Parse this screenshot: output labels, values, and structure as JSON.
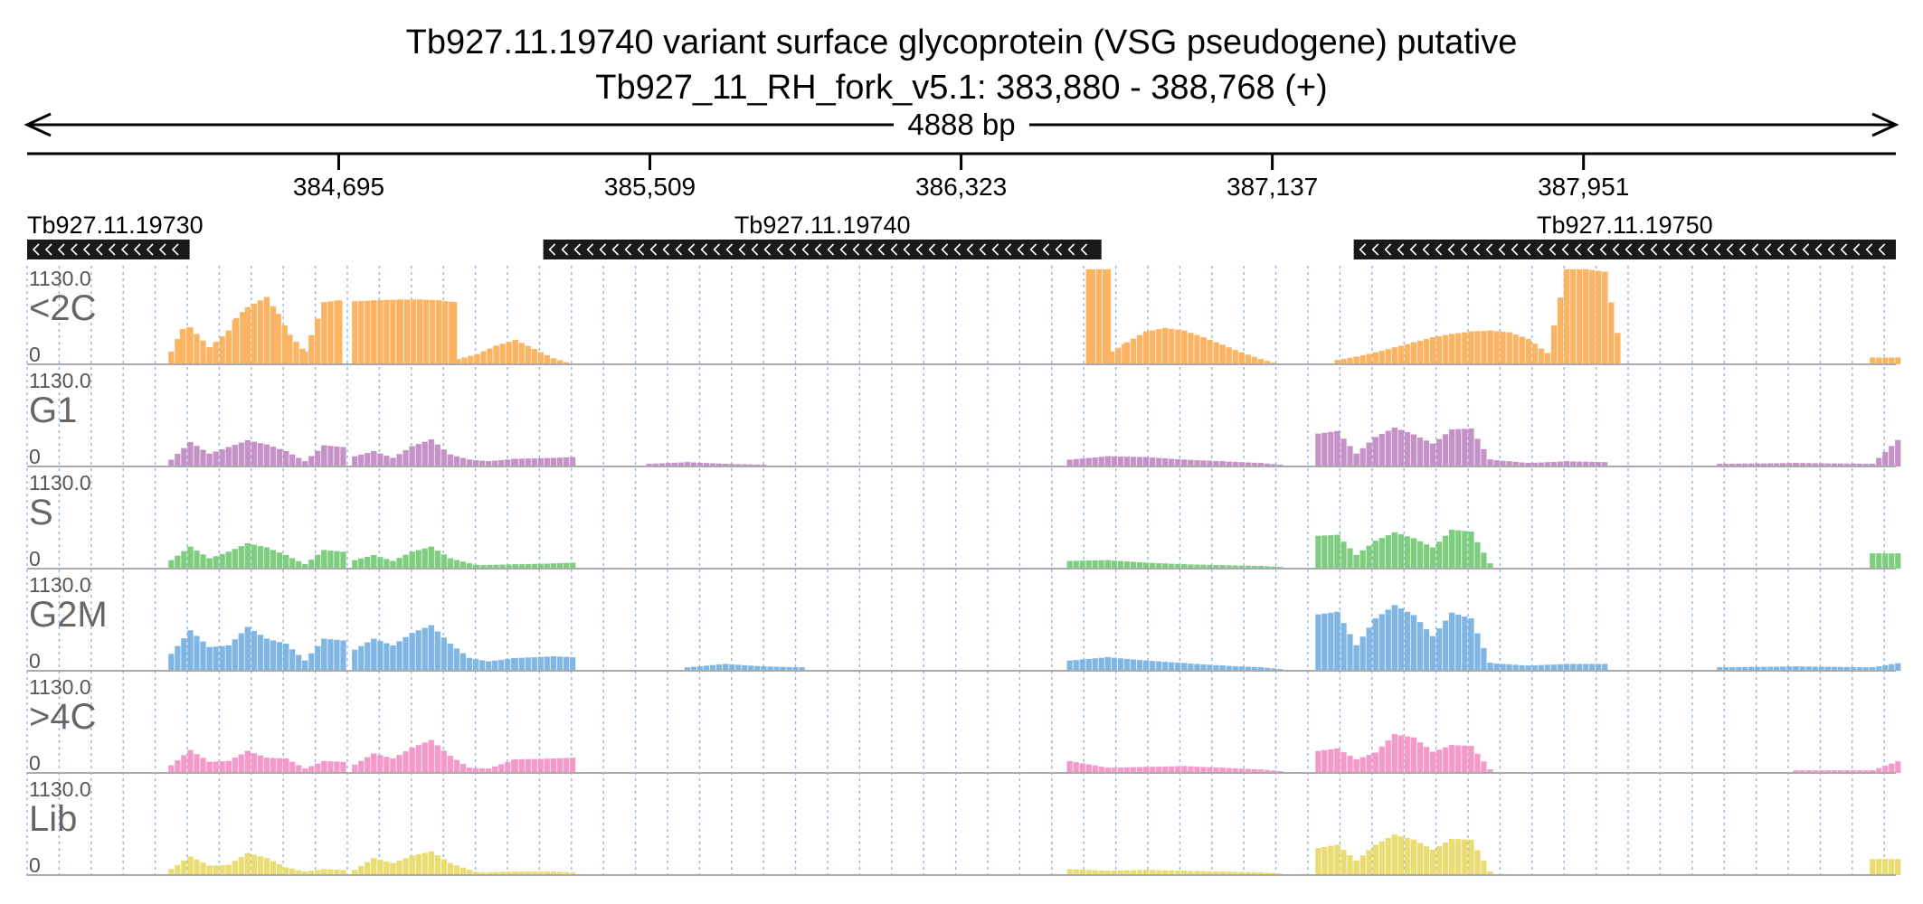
{
  "header": {
    "title": "Tb927.11.19740  variant surface glycoprotein (VSG  pseudogene)  putative",
    "locus": "Tb927_11_RH_fork_v5.1: 383,880 - 388,768 (+)",
    "span_label": "4888 bp"
  },
  "colors": {
    "<2C": "#fdb462",
    "G1": "#c492c6",
    "S": "#7fce7f",
    "G2M": "#80b6e4",
    ">4C": "#f59ac8",
    "Lib": "#e8dc72",
    "gene_box": "#1a1a1a",
    "grid": "#8fb6e0"
  },
  "chart_data": {
    "type": "area",
    "x_range": [
      383880,
      388768
    ],
    "x_ticks": [
      "384,695",
      "385,509",
      "386,323",
      "387,137",
      "387,951"
    ],
    "x_tick_values": [
      384695,
      385509,
      386323,
      387137,
      387951
    ],
    "genes": [
      {
        "name": "Tb927.11.19730",
        "start": 383880,
        "end": 384305,
        "strand": "-"
      },
      {
        "name": "Tb927.11.19740",
        "start": 385230,
        "end": 386690,
        "strand": "-"
      },
      {
        "name": "Tb927.11.19750",
        "start": 387350,
        "end": 388768,
        "strand": "-"
      }
    ],
    "track_ymax": "1130.0",
    "track_ymin": "0",
    "ylim": [
      0,
      1130
    ],
    "tracks": [
      {
        "name": "<2C",
        "segments": [
          {
            "x": [
              384250,
              384280,
              384300,
              384350,
              384400,
              384420,
              384450,
              384500,
              384530,
              384560,
              384600,
              384650,
              384690,
              384700
            ],
            "y": [
              150,
              420,
              440,
              200,
              400,
              550,
              680,
              800,
              600,
              350,
              150,
              740,
              760,
              0
            ]
          },
          {
            "x": [
              384730,
              384780,
              384850,
              384900,
              384950,
              384990,
              385000
            ],
            "y": [
              750,
              760,
              770,
              770,
              760,
              740,
              0
            ]
          },
          {
            "x": [
              385000,
              385050,
              385100,
              385150,
              385200,
              385250,
              385300
            ],
            "y": [
              60,
              120,
              220,
              290,
              180,
              70,
              0
            ]
          },
          {
            "x": [
              386650,
              386660,
              386700,
              386710,
              386750,
              386800,
              386850,
              386900,
              386950,
              387000,
              387050,
              387100,
              387150
            ],
            "y": [
              1130,
              1130,
              1130,
              150,
              260,
              390,
              430,
              400,
              320,
              230,
              140,
              60,
              0
            ]
          },
          {
            "x": [
              387300,
              387350,
              387400,
              387450,
              387500,
              387550,
              387600,
              387650,
              387700,
              387750,
              387800,
              387850,
              387900,
              387950,
              388000,
              388050
            ],
            "y": [
              50,
              90,
              140,
              200,
              260,
              320,
              360,
              390,
              400,
              380,
              300,
              130,
              1130,
              1130,
              1100,
              0
            ]
          },
          {
            "x": [
              388700,
              388768
            ],
            "y": [
              80,
              80
            ]
          }
        ]
      },
      {
        "name": "G1",
        "segments": [
          {
            "x": [
              384250,
              384300,
              384350,
              384400,
              384450,
              384500,
              384550,
              384600,
              384650,
              384700
            ],
            "y": [
              80,
              290,
              150,
              230,
              310,
              260,
              180,
              60,
              250,
              230
            ]
          },
          {
            "x": [
              384730,
              384780,
              384830,
              384880,
              384930,
              384980,
              385030,
              385080,
              385150,
              385250,
              385300
            ],
            "y": [
              120,
              180,
              100,
              240,
              320,
              140,
              80,
              60,
              90,
              100,
              110
            ]
          },
          {
            "x": [
              385500,
              385600,
              385700,
              385800
            ],
            "y": [
              30,
              50,
              30,
              20
            ]
          },
          {
            "x": [
              386600,
              386700,
              386800,
              386900,
              387000,
              387100,
              387150
            ],
            "y": [
              80,
              120,
              110,
              80,
              60,
              40,
              20
            ]
          },
          {
            "x": [
              387250,
              387300,
              387350,
              387400,
              387450,
              387500,
              387550,
              387600,
              387650,
              387700,
              387800,
              387900,
              388000
            ],
            "y": [
              390,
              420,
              150,
              350,
              460,
              380,
              270,
              440,
              450,
              80,
              40,
              60,
              50
            ]
          },
          {
            "x": [
              388300,
              388500,
              388700,
              388768
            ],
            "y": [
              30,
              40,
              30,
              320
            ]
          }
        ]
      },
      {
        "name": "S",
        "segments": [
          {
            "x": [
              384250,
              384300,
              384350,
              384400,
              384450,
              384500,
              384550,
              384600,
              384650,
              384700
            ],
            "y": [
              100,
              260,
              120,
              200,
              300,
              250,
              160,
              50,
              220,
              200
            ]
          },
          {
            "x": [
              384730,
              384780,
              384830,
              384880,
              384930,
              384980,
              385050,
              385150,
              385250,
              385300
            ],
            "y": [
              100,
              160,
              90,
              200,
              260,
              120,
              40,
              50,
              60,
              70
            ]
          },
          {
            "x": [
              386600,
              386700,
              386800,
              386900,
              387000,
              387100,
              387150
            ],
            "y": [
              90,
              100,
              70,
              50,
              40,
              30,
              20
            ]
          },
          {
            "x": [
              387250,
              387300,
              387350,
              387400,
              387450,
              387500,
              387550,
              387600,
              387650,
              387700
            ],
            "y": [
              390,
              400,
              160,
              330,
              430,
              360,
              250,
              460,
              440,
              60
            ]
          },
          {
            "x": [
              388700,
              388768
            ],
            "y": [
              180,
              180
            ]
          }
        ]
      },
      {
        "name": "G2M",
        "segments": [
          {
            "x": [
              384250,
              384300,
              384350,
              384400,
              384450,
              384500,
              384550,
              384600,
              384650,
              384700
            ],
            "y": [
              200,
              480,
              280,
              300,
              520,
              380,
              320,
              120,
              380,
              360
            ]
          },
          {
            "x": [
              384730,
              384780,
              384830,
              384880,
              384930,
              384980,
              385030,
              385080,
              385150,
              385250,
              385300
            ],
            "y": [
              250,
              380,
              300,
              450,
              540,
              320,
              150,
              110,
              150,
              170,
              160
            ]
          },
          {
            "x": [
              385600,
              385700,
              385800,
              385900
            ],
            "y": [
              40,
              80,
              50,
              40
            ]
          },
          {
            "x": [
              386600,
              386700,
              386800,
              386900,
              387000,
              387100,
              387150
            ],
            "y": [
              120,
              160,
              120,
              90,
              60,
              40,
              20
            ]
          },
          {
            "x": [
              387250,
              387300,
              387350,
              387400,
              387450,
              387500,
              387550,
              387600,
              387650,
              387700,
              387800,
              387900,
              388000
            ],
            "y": [
              670,
              700,
              300,
              620,
              780,
              660,
              410,
              690,
              620,
              90,
              60,
              80,
              80
            ]
          },
          {
            "x": [
              388300,
              388500,
              388700,
              388768
            ],
            "y": [
              40,
              50,
              40,
              90
            ]
          }
        ]
      },
      {
        "name": ">4C",
        "segments": [
          {
            "x": [
              384250,
              384300,
              384350,
              384400,
              384450,
              384500,
              384550,
              384600,
              384650,
              384700
            ],
            "y": [
              90,
              270,
              130,
              140,
              260,
              180,
              170,
              50,
              140,
              130
            ]
          },
          {
            "x": [
              384730,
              384780,
              384830,
              384880,
              384930,
              384980,
              385030,
              385080,
              385150,
              385250,
              385300
            ],
            "y": [
              100,
              230,
              170,
              300,
              390,
              200,
              60,
              50,
              160,
              170,
              180
            ]
          },
          {
            "x": [
              386600,
              386700,
              386800,
              386900,
              387000,
              387100,
              387150
            ],
            "y": [
              140,
              60,
              70,
              80,
              60,
              40,
              20
            ]
          },
          {
            "x": [
              387250,
              387300,
              387350,
              387400,
              387450,
              387500,
              387550,
              387600,
              387650,
              387700
            ],
            "y": [
              260,
              290,
              160,
              240,
              460,
              420,
              250,
              330,
              320,
              40
            ]
          },
          {
            "x": [
              388500,
              388700,
              388768
            ],
            "y": [
              30,
              30,
              140
            ]
          }
        ]
      },
      {
        "name": "Lib",
        "segments": [
          {
            "x": [
              384250,
              384300,
              384350,
              384400,
              384450,
              384500,
              384550,
              384600,
              384650,
              384700
            ],
            "y": [
              70,
              220,
              110,
              120,
              260,
              200,
              90,
              40,
              70,
              60
            ]
          },
          {
            "x": [
              384730,
              384780,
              384830,
              384880,
              384930,
              384980,
              385050,
              385150,
              385250,
              385300
            ],
            "y": [
              60,
              200,
              140,
              230,
              280,
              140,
              30,
              40,
              40,
              30
            ]
          },
          {
            "x": [
              386600,
              386700,
              386800,
              386900,
              387000,
              387100,
              387150
            ],
            "y": [
              70,
              50,
              60,
              50,
              40,
              30,
              20
            ]
          },
          {
            "x": [
              387250,
              387300,
              387350,
              387400,
              387450,
              387500,
              387550,
              387600,
              387650,
              387700
            ],
            "y": [
              320,
              360,
              170,
              360,
              480,
              420,
              300,
              430,
              420,
              40
            ]
          },
          {
            "x": [
              388700,
              388768
            ],
            "y": [
              190,
              190
            ]
          }
        ]
      }
    ]
  }
}
